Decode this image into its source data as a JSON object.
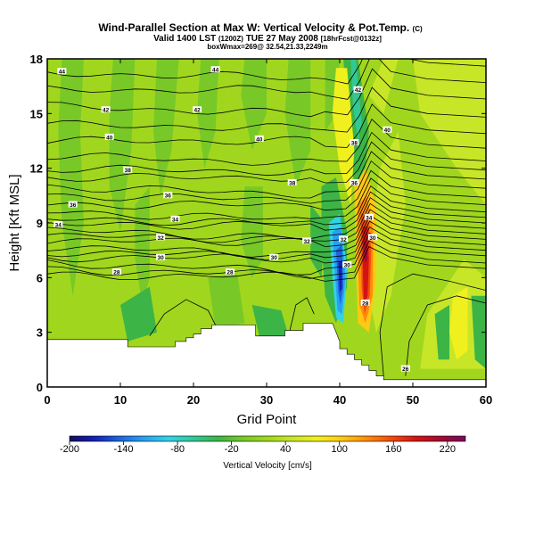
{
  "chart_data": {
    "type": "heatmap",
    "title": "Wind-Parallel Section at Max W: Vertical Velocity & Pot.Temp.",
    "title_mark": "(C)",
    "subtitle_prefix": "Valid 1400 LST",
    "subtitle_utc": "(1200Z)",
    "subtitle_date": "TUE 27 May 2008",
    "subtitle_suffix": "[18hrFcst@0132z]",
    "subtitle2": "boxWmax=269@ 32.54,21.33,2249m",
    "xlabel": "Grid Point",
    "ylabel": "Height [Kft MSL]",
    "xlim": [
      0,
      60
    ],
    "ylim": [
      0,
      18
    ],
    "xticks": [
      "0",
      "10",
      "20",
      "30",
      "40",
      "50",
      "60"
    ],
    "yticks": [
      "0",
      "3",
      "6",
      "9",
      "12",
      "15",
      "18"
    ],
    "colorbar": {
      "label": "Vertical Velocity [cm/s]",
      "ticks": [
        "-200",
        "-140",
        "-80",
        "-20",
        "40",
        "100",
        "160",
        "220"
      ],
      "range": [
        -200,
        240
      ],
      "colors": [
        "#10105a",
        "#1420b4",
        "#1e64dc",
        "#28a0f0",
        "#32d2e6",
        "#32c896",
        "#3cb446",
        "#78c828",
        "#a0d71e",
        "#c8e628",
        "#f0f01e",
        "#ffc814",
        "#ff8c0a",
        "#f04b0a",
        "#d21414",
        "#a00a32",
        "#780a5a"
      ]
    },
    "theta_contour_labels": [
      {
        "x": 2,
        "y": 17.3,
        "text": "44"
      },
      {
        "x": 23,
        "y": 17.4,
        "text": "44"
      },
      {
        "x": 8,
        "y": 15.2,
        "text": "42"
      },
      {
        "x": 20.5,
        "y": 15.2,
        "text": "42"
      },
      {
        "x": 8.5,
        "y": 13.7,
        "text": "40"
      },
      {
        "x": 29,
        "y": 13.6,
        "text": "40"
      },
      {
        "x": 11,
        "y": 11.9,
        "text": "38"
      },
      {
        "x": 33.5,
        "y": 11.2,
        "text": "38"
      },
      {
        "x": 3.5,
        "y": 10.0,
        "text": "36"
      },
      {
        "x": 16.5,
        "y": 10.5,
        "text": "36"
      },
      {
        "x": 1.5,
        "y": 8.9,
        "text": "34"
      },
      {
        "x": 17.5,
        "y": 9.2,
        "text": "34"
      },
      {
        "x": 15.5,
        "y": 8.2,
        "text": "32"
      },
      {
        "x": 35.5,
        "y": 8.0,
        "text": "32"
      },
      {
        "x": 15.5,
        "y": 7.1,
        "text": "30"
      },
      {
        "x": 31,
        "y": 7.1,
        "text": "30"
      },
      {
        "x": 9.5,
        "y": 6.3,
        "text": "28"
      },
      {
        "x": 25,
        "y": 6.3,
        "text": "28"
      },
      {
        "x": 42.5,
        "y": 16.3,
        "text": "42"
      },
      {
        "x": 46.5,
        "y": 14.1,
        "text": "40"
      },
      {
        "x": 42,
        "y": 13.4,
        "text": "38"
      },
      {
        "x": 42,
        "y": 11.2,
        "text": "36"
      },
      {
        "x": 44,
        "y": 9.3,
        "text": "34"
      },
      {
        "x": 44.5,
        "y": 8.2,
        "text": "30"
      },
      {
        "x": 40.5,
        "y": 8.1,
        "text": "32"
      },
      {
        "x": 41,
        "y": 6.7,
        "text": "30"
      },
      {
        "x": 43.5,
        "y": 4.6,
        "text": "28"
      },
      {
        "x": 49,
        "y": 1.0,
        "text": "26"
      }
    ]
  }
}
